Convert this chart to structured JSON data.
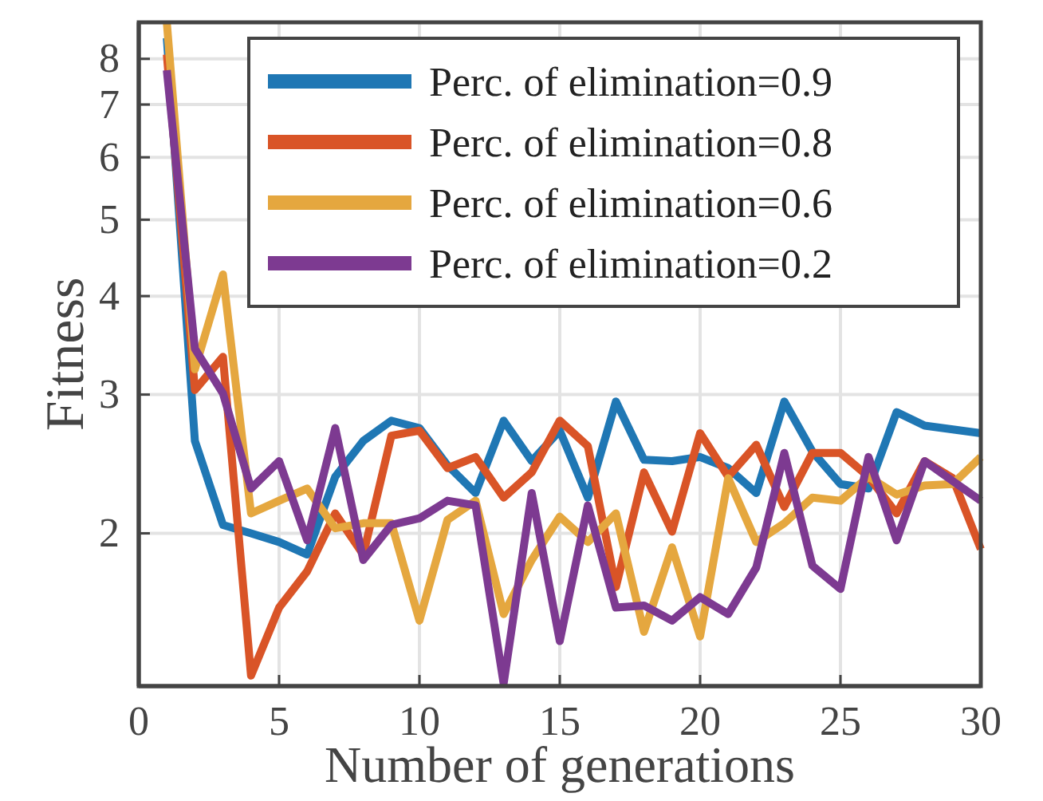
{
  "chart_data": {
    "type": "line",
    "xlabel": "Number of generations",
    "ylabel": "Fitness",
    "log": "y",
    "grid": true,
    "legend": "top right",
    "line_style": "solid",
    "marker": "none",
    "x": [
      1,
      2,
      3,
      4,
      5,
      6,
      7,
      8,
      9,
      10,
      11,
      12,
      13,
      14,
      15,
      16,
      17,
      18,
      19,
      20,
      21,
      22,
      23,
      24,
      25,
      26,
      27,
      28,
      29,
      30
    ],
    "xlim": [
      0,
      30
    ],
    "xticks": [
      0,
      5,
      10,
      15,
      20,
      25,
      30
    ],
    "ylim": [
      1.28,
      8.9
    ],
    "yticks": [
      2,
      3,
      4,
      5,
      6,
      7,
      8
    ],
    "series": [
      {
        "name": "Perc. of elimination=0.9",
        "color": "#1f77b4",
        "values": [
          8.5,
          2.62,
          2.05,
          2.0,
          1.95,
          1.88,
          2.36,
          2.62,
          2.78,
          2.72,
          2.44,
          2.25,
          2.78,
          2.47,
          2.7,
          2.22,
          2.94,
          2.48,
          2.47,
          2.5,
          2.42,
          2.25,
          2.94,
          2.54,
          2.31,
          2.28,
          2.85,
          2.74,
          2.71,
          2.68
        ]
      },
      {
        "name": "Perc. of elimination=0.8",
        "color": "#d95427",
        "values": [
          8.1,
          3.04,
          3.35,
          1.32,
          1.61,
          1.79,
          2.12,
          1.88,
          2.66,
          2.7,
          2.42,
          2.5,
          2.22,
          2.39,
          2.78,
          2.58,
          1.71,
          2.39,
          2.01,
          2.68,
          2.36,
          2.59,
          2.16,
          2.53,
          2.53,
          2.36,
          2.12,
          2.47,
          2.35,
          1.91
        ]
      },
      {
        "name": "Perc. of elimination=0.6",
        "color": "#e5a73f",
        "values": [
          8.9,
          3.23,
          4.26,
          2.12,
          2.2,
          2.28,
          2.03,
          2.06,
          2.06,
          1.55,
          2.08,
          2.2,
          1.58,
          1.85,
          2.1,
          1.95,
          2.12,
          1.5,
          1.92,
          1.48,
          2.35,
          1.95,
          2.06,
          2.22,
          2.2,
          2.36,
          2.24,
          2.3,
          2.31,
          2.5
        ]
      },
      {
        "name": "Perc. of elimination=0.2",
        "color": "#7d3a91",
        "values": [
          7.74,
          3.43,
          3.01,
          2.28,
          2.47,
          1.96,
          2.72,
          1.85,
          2.05,
          2.09,
          2.2,
          2.17,
          1.29,
          2.25,
          1.46,
          2.17,
          1.61,
          1.62,
          1.55,
          1.66,
          1.58,
          1.81,
          2.53,
          1.82,
          1.7,
          2.5,
          1.96,
          2.47,
          2.33,
          2.2
        ]
      }
    ]
  }
}
